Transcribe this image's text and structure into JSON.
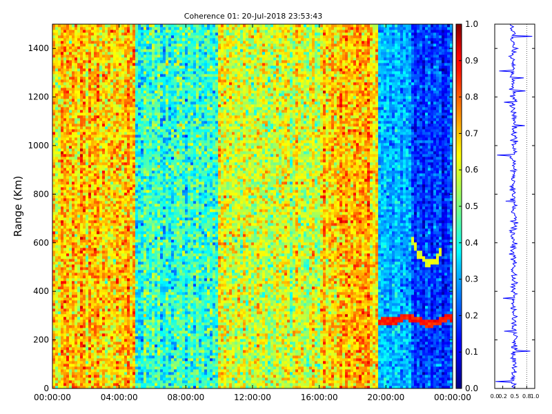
{
  "chart_data": [
    {
      "type": "heatmap",
      "title": "Coherence 01: 20-Jul-2018 23:53:43",
      "xlabel": "",
      "ylabel": "Range (Km)",
      "x_ticks": [
        "00:00:00",
        "04:00:00",
        "08:00:00",
        "12:00:00",
        "16:00:00",
        "20:00:00",
        "00:00:00"
      ],
      "xlim_hours": [
        0,
        24
      ],
      "y_ticks": [
        0,
        200,
        400,
        600,
        800,
        1000,
        1200,
        1400
      ],
      "ylim": [
        0,
        1500
      ],
      "colormap": "jet",
      "colorbar": {
        "range": [
          0,
          1
        ],
        "ticks": [
          "0.0",
          "0.1",
          "0.2",
          "0.3",
          "0.4",
          "0.5",
          "0.6",
          "0.7",
          "0.8",
          "0.9",
          "1.0"
        ]
      },
      "column_bands_mean_coherence": [
        {
          "from_hour": 0,
          "to_hour": 5,
          "mean": 0.66
        },
        {
          "from_hour": 5,
          "to_hour": 10,
          "mean": 0.42
        },
        {
          "from_hour": 10,
          "to_hour": 16,
          "mean": 0.58
        },
        {
          "from_hour": 16,
          "to_hour": 19.5,
          "mean": 0.68
        },
        {
          "from_hour": 19.5,
          "to_hour": 21.5,
          "mean": 0.3
        },
        {
          "from_hour": 21.5,
          "to_hour": 24,
          "mean": 0.18
        }
      ],
      "features": [
        {
          "type": "ridge",
          "value": 0.85,
          "points_hour_km": [
            [
              19.5,
              275
            ],
            [
              20.5,
              280
            ],
            [
              21.2,
              295
            ],
            [
              21.8,
              285
            ],
            [
              22.5,
              265
            ],
            [
              23.2,
              275
            ],
            [
              23.7,
              295
            ],
            [
              24,
              285
            ]
          ]
        },
        {
          "type": "arc",
          "value": 0.6,
          "points_hour_km": [
            [
              21.5,
              620
            ],
            [
              22,
              550
            ],
            [
              22.5,
              515
            ],
            [
              23,
              525
            ],
            [
              23.3,
              570
            ]
          ]
        }
      ]
    },
    {
      "type": "line",
      "xlim": [
        0,
        1
      ],
      "x_ticks": [
        "0.0",
        "0.2",
        "0.5",
        "0.8",
        "1.0"
      ],
      "ylim": [
        0,
        1500
      ],
      "color": "#0000ff",
      "mean_coherence_vs_range": [
        {
          "km": 0,
          "value": 0.45
        },
        {
          "km": 100,
          "value": 0.48
        },
        {
          "km": 200,
          "value": 0.5
        },
        {
          "km": 300,
          "value": 0.47
        },
        {
          "km": 400,
          "value": 0.49
        },
        {
          "km": 500,
          "value": 0.46
        },
        {
          "km": 600,
          "value": 0.47
        },
        {
          "km": 700,
          "value": 0.48
        },
        {
          "km": 800,
          "value": 0.47
        },
        {
          "km": 900,
          "value": 0.46
        },
        {
          "km": 1000,
          "value": 0.47
        },
        {
          "km": 1100,
          "value": 0.46
        },
        {
          "km": 1200,
          "value": 0.47
        },
        {
          "km": 1300,
          "value": 0.46
        },
        {
          "km": 1400,
          "value": 0.47
        },
        {
          "km": 1500,
          "value": 0.45
        }
      ]
    }
  ]
}
